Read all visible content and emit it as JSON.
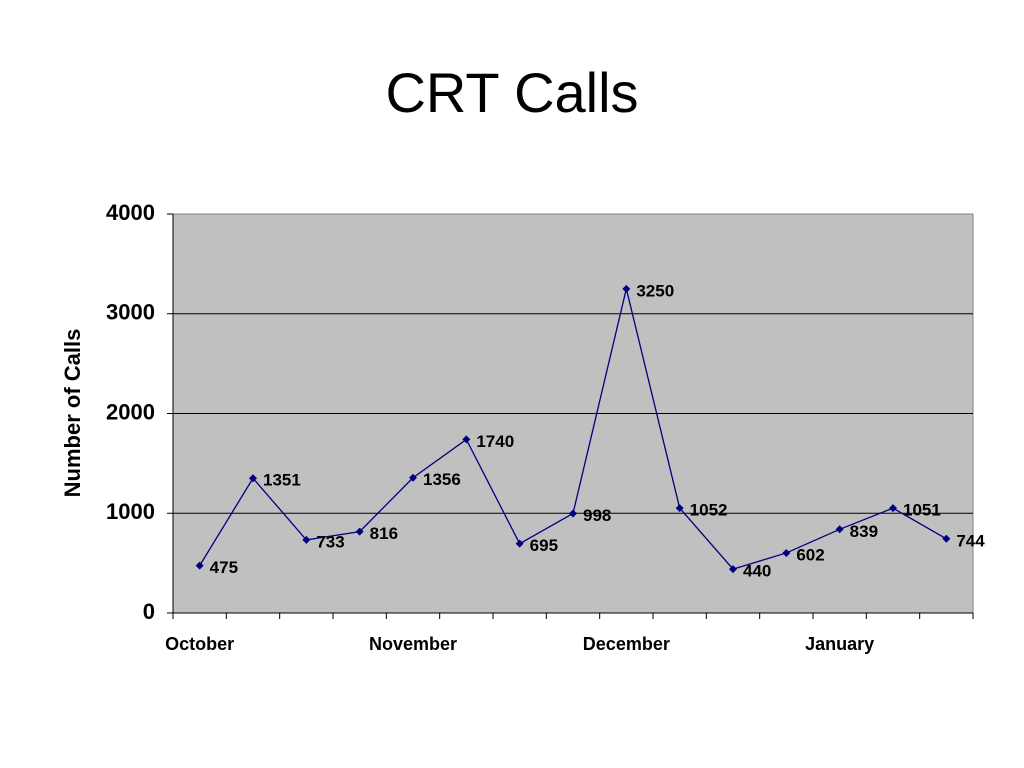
{
  "chart_data": {
    "type": "line",
    "title": "CRT Calls",
    "y_label": "Number of Calls",
    "categories": [
      "October",
      null,
      null,
      null,
      "November",
      null,
      null,
      null,
      "December",
      null,
      null,
      null,
      "January",
      null,
      null
    ],
    "series": [
      {
        "name": "Calls",
        "color": "#000080",
        "values": [
          475,
          1351,
          733,
          816,
          1356,
          1740,
          695,
          998,
          3250,
          1052,
          440,
          602,
          839,
          1051,
          744
        ]
      }
    ],
    "ylim": [
      0,
      4000
    ],
    "yticks": [
      0,
      1000,
      2000,
      3000,
      4000
    ],
    "grid": true,
    "plot_background": "#c0c0c0"
  }
}
